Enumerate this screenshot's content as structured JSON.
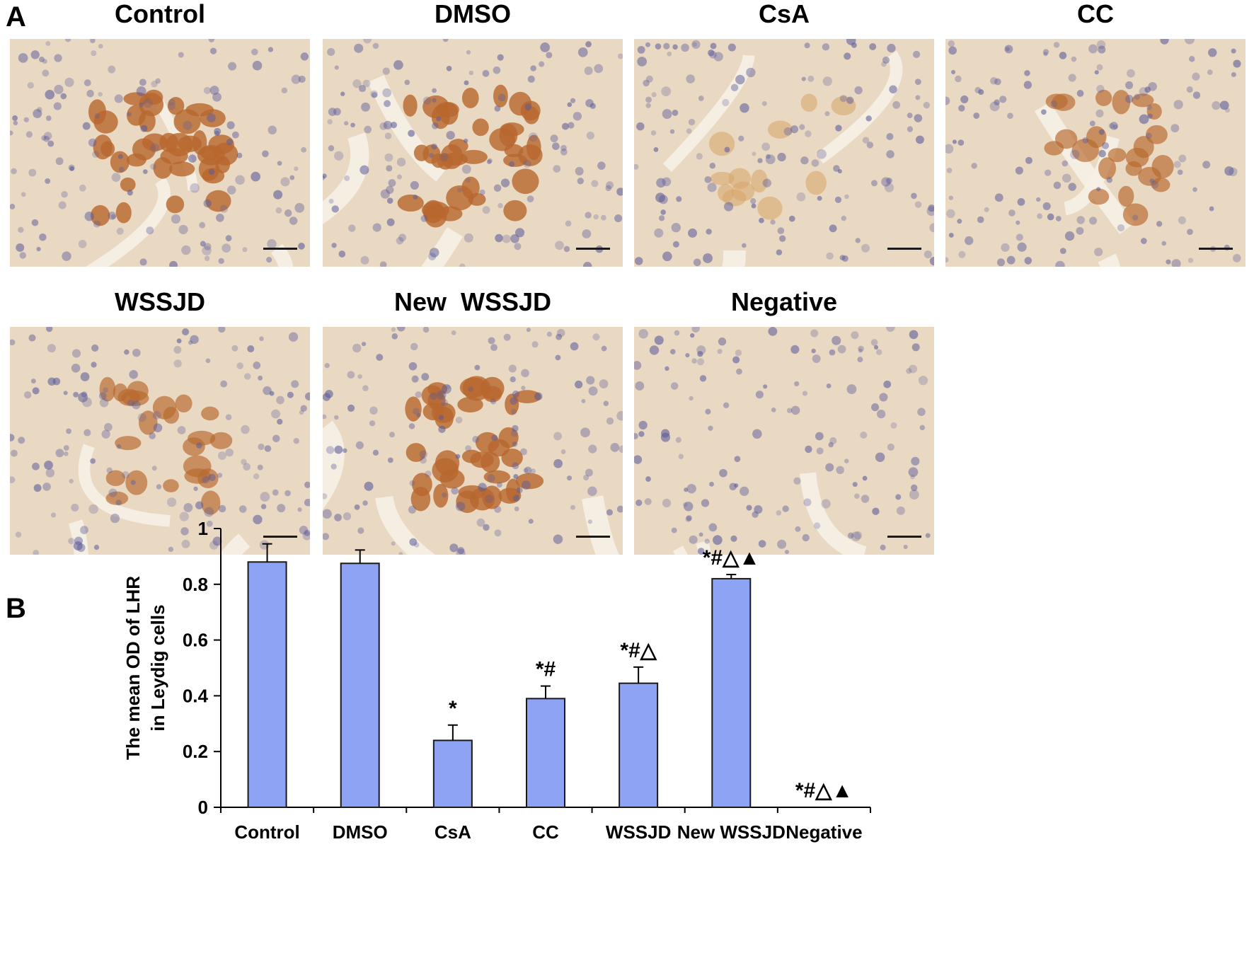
{
  "panel_labels": {
    "a": "A",
    "b": "B"
  },
  "micrographs": [
    {
      "title": "Control",
      "stain": "strong"
    },
    {
      "title": "DMSO",
      "stain": "strong"
    },
    {
      "title": "CsA",
      "stain": "weak"
    },
    {
      "title": "CC",
      "stain": "moderate"
    },
    {
      "title": "WSSJD",
      "stain": "moderate"
    },
    {
      "title": "New  WSSJD",
      "stain": "strong"
    },
    {
      "title": "Negative",
      "stain": "none"
    }
  ],
  "colors": {
    "bar_fill": "#8fa3f5",
    "bar_stroke": "#1a1a1a",
    "stain_strong": "#b8682e",
    "stain_weak": "#d6a66a",
    "nuclei": "#5a5a9a",
    "tissue": "#ead9c2"
  },
  "chart_data": {
    "type": "bar",
    "ylabel_line1": "The mean OD of LHR",
    "ylabel_line2": "in Leydig cells",
    "xlabel": "",
    "ylim": [
      0,
      1
    ],
    "yticks": [
      "0",
      "0.2",
      "0.4",
      "0.6",
      "0.8",
      "1"
    ],
    "categories": [
      "Control",
      "DMSO",
      "CsA",
      "CC",
      "WSSJD",
      "New WSSJD",
      "Negative"
    ],
    "values": [
      0.88,
      0.875,
      0.24,
      0.39,
      0.445,
      0.82,
      0
    ],
    "errors": [
      0.065,
      0.048,
      0.055,
      0.045,
      0.058,
      0.015,
      0
    ],
    "annotations": [
      "",
      "",
      "*",
      "*#",
      "*#△",
      "*#△▲",
      "*#△▲"
    ]
  }
}
